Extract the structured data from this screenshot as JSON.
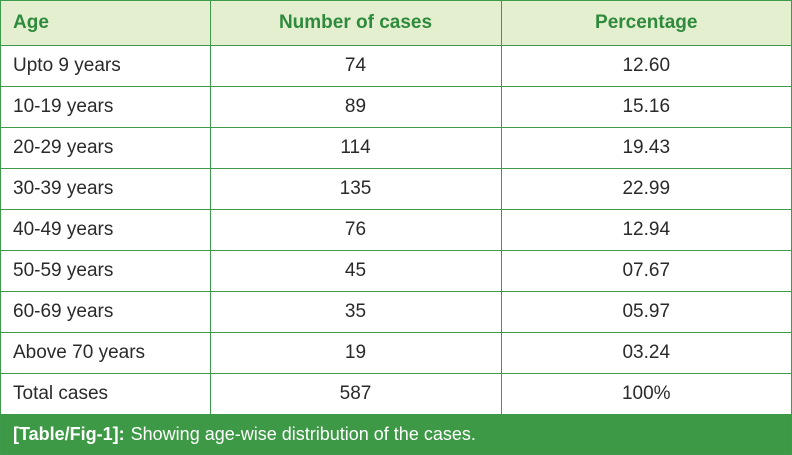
{
  "table": {
    "headers": [
      "Age",
      "Number of cases",
      "Percentage"
    ],
    "rows": [
      [
        "Upto 9 years",
        "74",
        "12.60"
      ],
      [
        "10-19 years",
        "89",
        "15.16"
      ],
      [
        "20-29 years",
        "114",
        "19.43"
      ],
      [
        "30-39 years",
        "135",
        "22.99"
      ],
      [
        "40-49 years",
        "76",
        "12.94"
      ],
      [
        "50-59 years",
        "45",
        "07.67"
      ],
      [
        "60-69 years",
        "35",
        "05.97"
      ],
      [
        "Above 70 years",
        "19",
        "03.24"
      ],
      [
        "Total cases",
        "587",
        "100%"
      ]
    ]
  },
  "caption": {
    "tag": "[Table/Fig-1]:",
    "text": "Showing age-wise distribution of the cases."
  },
  "colors": {
    "border": "#3f9a4b",
    "header_bg": "#e4efcf",
    "header_text": "#2e8a3c",
    "caption_bg": "#3d9945"
  }
}
